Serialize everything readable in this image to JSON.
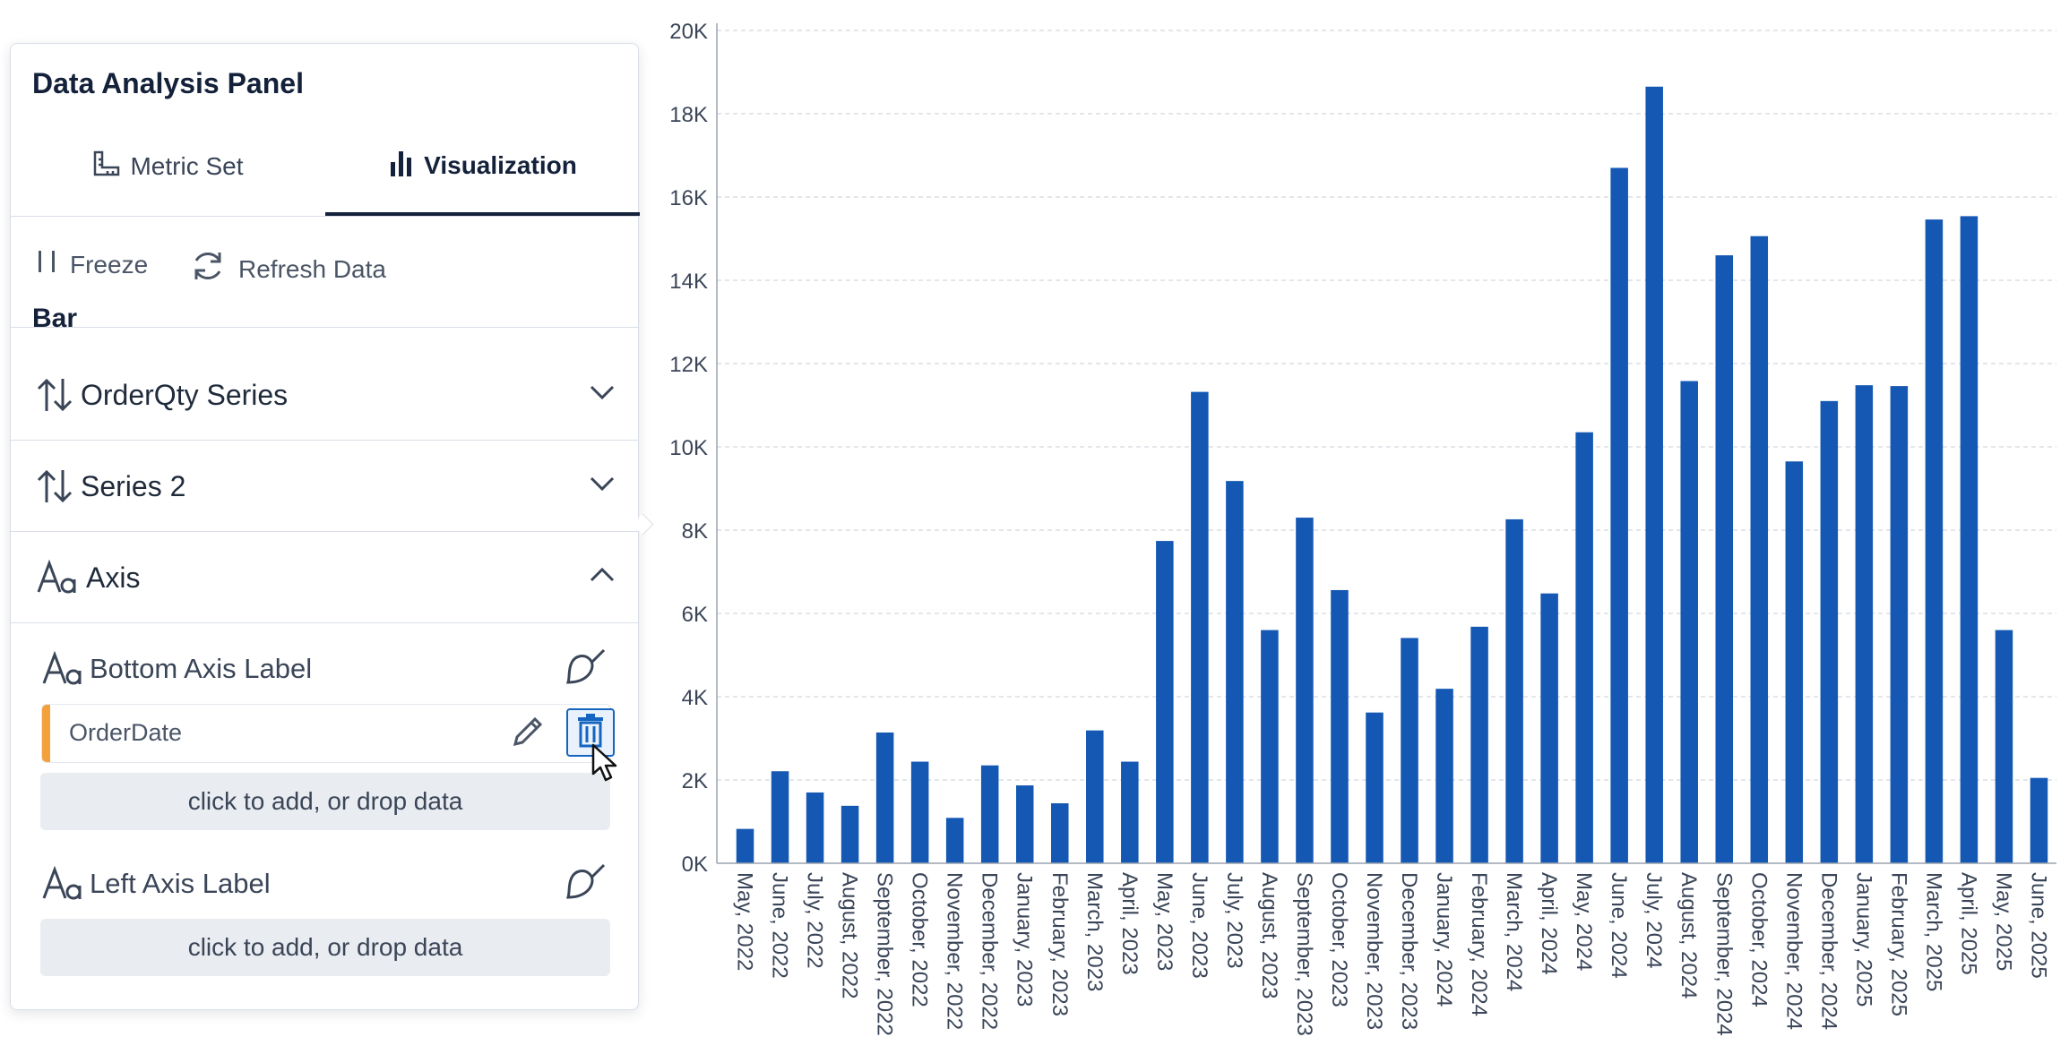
{
  "panel": {
    "title": "Data Analysis Panel",
    "tabs": [
      {
        "label": "Metric Set",
        "icon": "ruler-icon"
      },
      {
        "label": "Visualization",
        "icon": "bar-chart-icon",
        "active": true
      }
    ],
    "toolbar": {
      "freeze_label": "Freeze",
      "refresh_label": "Refresh Data"
    },
    "section_label": "Bar",
    "accordions": [
      {
        "label": "OrderQty Series",
        "icon": "sort-arrows-icon",
        "expanded": false
      },
      {
        "label": "Series 2",
        "icon": "sort-arrows-icon",
        "expanded": false
      },
      {
        "label": "Axis",
        "icon": "text-style-icon",
        "expanded": true
      }
    ],
    "axis": {
      "bottom_label": "Bottom Axis Label",
      "bottom_field": "OrderDate",
      "drop_hint": "click to add, or drop data",
      "left_label": "Left Axis Label",
      "left_drop_hint": "click to add, or drop data"
    },
    "colors": {
      "accent": "#1565c0",
      "field_marker": "#f4a13c",
      "bar": "#1458b4"
    }
  },
  "chart_data": {
    "type": "bar",
    "categories": [
      "May, 2022",
      "June, 2022",
      "July, 2022",
      "August, 2022",
      "September, 2022",
      "October, 2022",
      "November, 2022",
      "December, 2022",
      "January, 2023",
      "February, 2023",
      "March, 2023",
      "April, 2023",
      "May, 2023",
      "June, 2023",
      "July, 2023",
      "August, 2023",
      "September, 2023",
      "October, 2023",
      "November, 2023",
      "December, 2023",
      "January, 2024",
      "February, 2024",
      "March, 2024",
      "April, 2024",
      "May, 2024",
      "June, 2024",
      "July, 2024",
      "August, 2024",
      "September, 2024",
      "October, 2024",
      "November, 2024",
      "December, 2024",
      "January, 2025",
      "February, 2025",
      "March, 2025",
      "April, 2025",
      "May, 2025",
      "June, 2025"
    ],
    "values": [
      825,
      2210,
      1700,
      1380,
      3140,
      2440,
      1090,
      2350,
      1870,
      1440,
      3190,
      2440,
      7740,
      11320,
      9180,
      5600,
      8300,
      6560,
      3620,
      5410,
      4190,
      5680,
      8260,
      6480,
      10350,
      16700,
      18650,
      11580,
      14600,
      15060,
      9650,
      11100,
      11480,
      11460,
      15460,
      15540,
      5600,
      2050
    ],
    "ylim": [
      0,
      20000
    ],
    "yticks": [
      "0K",
      "2K",
      "4K",
      "6K",
      "8K",
      "10K",
      "12K",
      "14K",
      "16K",
      "18K",
      "20K"
    ],
    "grid": true,
    "color": "#1458b4"
  }
}
